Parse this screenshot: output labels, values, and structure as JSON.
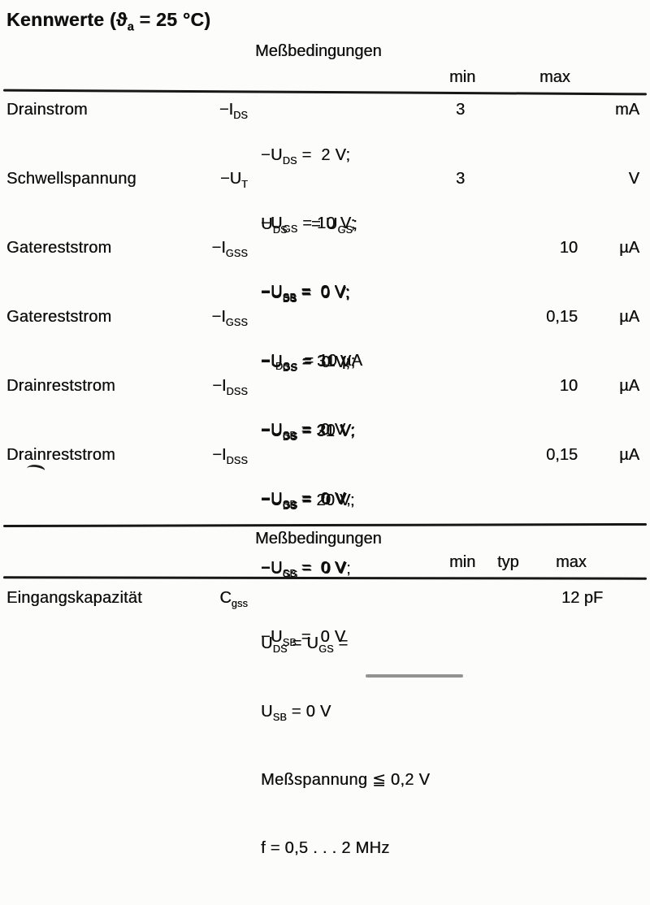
{
  "title": "Kennwerte (ϑ~a~ = 25 °C)",
  "table1": {
    "conditions_header": "Meßbedingungen",
    "columns": {
      "min": "min",
      "max": "max"
    },
    "rows": [
      {
        "name": "Drainstrom",
        "symbol": "−I~DS~",
        "cond": [
          "−U~DS~ =  2 V;",
          "−U~GS~ = 10 V;",
          "−U~SB~ =  0 V"
        ],
        "min": "3",
        "max": "",
        "unit": "mA"
      },
      {
        "name": "Schwellspannung",
        "symbol": "−U~T~",
        "cond": [
          "U~DS~     = U~GS~;",
          "−U~SB~ =  0 V;",
          "−I~DS~   = 10 µA"
        ],
        "min": "3",
        "max": "",
        "unit": "V"
      },
      {
        "name": "Gatereststrom",
        "symbol": "−I~GSS~",
        "cond": [
          "−U~DS~ =  0 V;",
          "−U~GS~ = 31 V;",
          "−U~SB~ =  0 V"
        ],
        "min": "",
        "max": "10",
        "unit": "µA"
      },
      {
        "name": "Gatereststrom",
        "symbol": "−I~GSS~",
        "cond": [
          "−U~DS~ =  0 V;",
          "−U~GS~ = 20 V;",
          "−U~SB~ =  0 V"
        ],
        "min": "",
        "max": "0,15",
        "unit": "µA"
      },
      {
        "name": "Drainreststrom",
        "symbol": "−I~DSS~",
        "cond": [
          "−U~DS~ = 31 V;",
          "−U~GS~ =  0 V;",
          "−U~SB~ =  0 V"
        ],
        "min": "",
        "max": "10",
        "unit": "µA"
      },
      {
        "name": "Drainreststrom",
        "symbol": "−I~DSS~",
        "cond": [
          "−U~DS~ = 20 V;",
          "−U~GS~ =  0 V;",
          "−U~SB~ =  0 V"
        ],
        "min": "",
        "max": "0,15",
        "unit": "µA"
      }
    ]
  },
  "table2": {
    "conditions_header": "Meßbedingungen",
    "columns": {
      "min": "min",
      "typ": "typ",
      "max": "max"
    },
    "rows": [
      {
        "name": "Eingangskapazität",
        "symbol": "C~gss~",
        "cond": [
          "U~DS~ = U~GS~ =",
          "U~SB~ = 0 V",
          "Meßspannung ≦ 0,2 V",
          "f = 0,5 . . . 2 MHz"
        ],
        "min": "",
        "typ": "",
        "max": "12 pF"
      }
    ]
  }
}
